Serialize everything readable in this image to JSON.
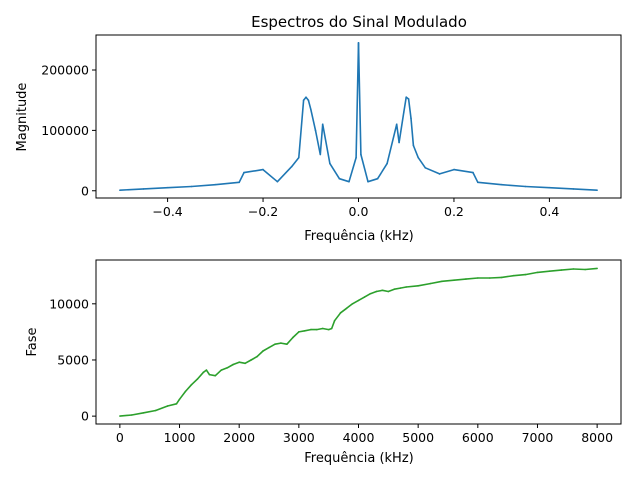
{
  "chart_data": [
    {
      "type": "line",
      "title": "Espectros do Sinal Modulado",
      "xlabel": "Frequência (kHz)",
      "ylabel": "Magnitude",
      "xlim": [
        -0.55,
        0.55
      ],
      "ylim": [
        -12000,
        258000
      ],
      "xticks": [
        -0.4,
        -0.2,
        0.0,
        0.2,
        0.4
      ],
      "xtick_labels": [
        "−0.4",
        "−0.2",
        "0.0",
        "0.2",
        "0.4"
      ],
      "yticks": [
        0,
        100000,
        200000
      ],
      "ytick_labels": [
        "0",
        "100000",
        "200000"
      ],
      "grid": false,
      "color": "#1f77b4",
      "x": [
        -0.5,
        -0.45,
        -0.4,
        -0.35,
        -0.3,
        -0.25,
        -0.24,
        -0.2,
        -0.17,
        -0.14,
        -0.125,
        -0.115,
        -0.11,
        -0.105,
        -0.1,
        -0.09,
        -0.08,
        -0.075,
        -0.06,
        -0.04,
        -0.02,
        -0.005,
        0.0,
        0.005,
        0.02,
        0.04,
        0.06,
        0.08,
        0.085,
        0.095,
        0.1,
        0.105,
        0.11,
        0.115,
        0.125,
        0.14,
        0.17,
        0.2,
        0.24,
        0.25,
        0.3,
        0.35,
        0.4,
        0.45,
        0.5
      ],
      "values": [
        1000,
        3000,
        5000,
        7000,
        10000,
        14000,
        30000,
        35000,
        15000,
        40000,
        55000,
        150000,
        155000,
        150000,
        135000,
        100000,
        60000,
        110000,
        45000,
        20000,
        15000,
        55000,
        245000,
        60000,
        15000,
        20000,
        45000,
        110000,
        80000,
        130000,
        155000,
        152000,
        120000,
        75000,
        55000,
        38000,
        28000,
        35000,
        30000,
        14000,
        10000,
        7000,
        5000,
        3000,
        1000
      ]
    },
    {
      "type": "line",
      "title": "",
      "xlabel": "Frequência (kHz)",
      "ylabel": "Fase",
      "xlim": [
        -400,
        8400
      ],
      "ylim": [
        -700,
        13900
      ],
      "xticks": [
        0,
        1000,
        2000,
        3000,
        4000,
        5000,
        6000,
        7000,
        8000
      ],
      "xtick_labels": [
        "0",
        "1000",
        "2000",
        "3000",
        "4000",
        "5000",
        "6000",
        "7000",
        "8000"
      ],
      "yticks": [
        0,
        5000,
        10000
      ],
      "ytick_labels": [
        "0",
        "5000",
        "10000"
      ],
      "grid": false,
      "color": "#2ca02c",
      "x": [
        0,
        200,
        400,
        600,
        800,
        950,
        1000,
        1100,
        1200,
        1300,
        1400,
        1450,
        1500,
        1600,
        1700,
        1800,
        1900,
        2000,
        2100,
        2200,
        2300,
        2400,
        2500,
        2600,
        2700,
        2800,
        2900,
        3000,
        3100,
        3200,
        3300,
        3400,
        3500,
        3550,
        3600,
        3700,
        3800,
        3900,
        4000,
        4100,
        4200,
        4300,
        4400,
        4500,
        4600,
        4700,
        4800,
        5000,
        5200,
        5400,
        5600,
        5800,
        6000,
        6200,
        6400,
        6600,
        6800,
        7000,
        7200,
        7400,
        7600,
        7800,
        8000
      ],
      "values": [
        0,
        100,
        300,
        500,
        900,
        1100,
        1500,
        2200,
        2800,
        3300,
        3900,
        4100,
        3700,
        3600,
        4100,
        4300,
        4600,
        4800,
        4700,
        5000,
        5300,
        5800,
        6100,
        6400,
        6500,
        6400,
        7000,
        7500,
        7600,
        7700,
        7700,
        7800,
        7700,
        7800,
        8500,
        9200,
        9600,
        10000,
        10300,
        10600,
        10900,
        11100,
        11200,
        11100,
        11300,
        11400,
        11500,
        11600,
        11800,
        12000,
        12100,
        12200,
        12300,
        12300,
        12350,
        12500,
        12600,
        12800,
        12900,
        13000,
        13100,
        13050,
        13150
      ]
    }
  ]
}
